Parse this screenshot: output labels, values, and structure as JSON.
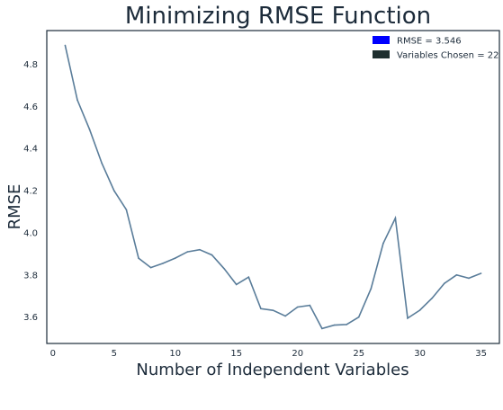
{
  "chart_data": {
    "type": "line",
    "title": "Minimizing RMSE Function",
    "xlabel": "Number of Independent Variables",
    "ylabel": "RMSE",
    "xlim": [
      -0.5,
      36.5
    ],
    "ylim": [
      3.475,
      4.96
    ],
    "xticks": [
      0,
      5,
      10,
      15,
      20,
      25,
      30,
      35
    ],
    "yticks": [
      3.6,
      3.8,
      4.0,
      4.2,
      4.4,
      4.6,
      4.8
    ],
    "grid": false,
    "legend_position": "top-right",
    "legend": [
      {
        "label": "RMSE = 3.546",
        "color": "#0000ff"
      },
      {
        "label": "Variables Chosen = 22",
        "color": "#1f2f2f"
      }
    ],
    "series": [
      {
        "color": "#5a7d9a",
        "x": [
          1,
          2,
          3,
          4,
          5,
          6,
          7,
          8,
          9,
          10,
          11,
          12,
          13,
          14,
          15,
          16,
          17,
          18,
          19,
          20,
          21,
          22,
          23,
          24,
          25,
          26,
          27,
          28,
          29,
          30,
          31,
          32,
          33,
          34,
          35
        ],
        "y": [
          4.89,
          4.63,
          4.49,
          4.33,
          4.2,
          4.11,
          3.88,
          3.835,
          3.855,
          3.88,
          3.91,
          3.92,
          3.895,
          3.83,
          3.755,
          3.79,
          3.64,
          3.632,
          3.605,
          3.648,
          3.656,
          3.546,
          3.562,
          3.565,
          3.6,
          3.735,
          3.95,
          4.07,
          3.595,
          3.633,
          3.69,
          3.76,
          3.8,
          3.785,
          3.808
        ]
      }
    ]
  }
}
